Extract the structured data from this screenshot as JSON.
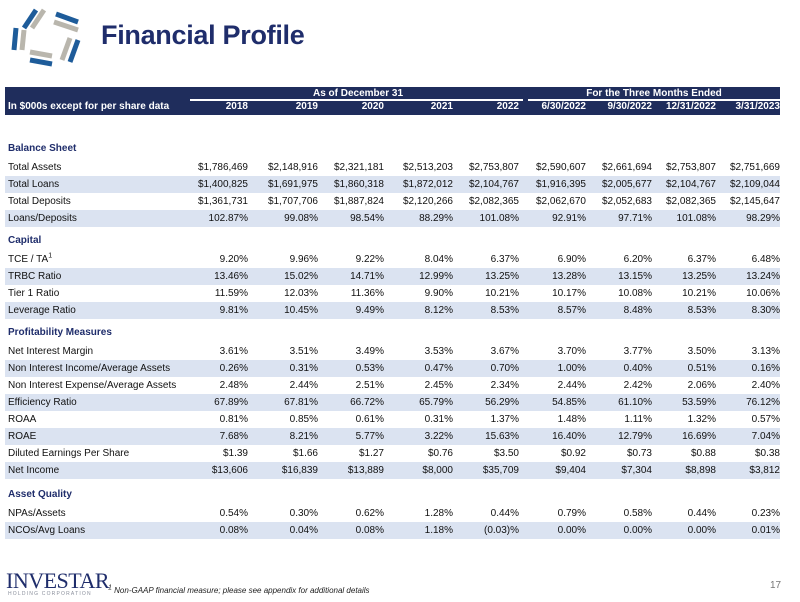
{
  "header": {
    "title": "Financial Profile",
    "brand": "INVESTAR",
    "brand_sub": "HOLDING CORPORATION",
    "brand_color": "#1f2d6b"
  },
  "table": {
    "unit_label": "In $000s except for per share data",
    "group_annual": "As of December 31",
    "group_quarterly": "For the Three Months Ended",
    "columns": [
      "2018",
      "2019",
      "2020",
      "2021",
      "2022",
      "6/30/2022",
      "9/30/2022",
      "12/31/2022",
      "3/31/2023"
    ],
    "header_color": "#1f2d5c",
    "stripe_color": "#dbe3f1",
    "sections": [
      {
        "title": "Balance Sheet",
        "rows": [
          {
            "label": "Total Assets",
            "values": [
              "$1,786,469",
              "$2,148,916",
              "$2,321,181",
              "$2,513,203",
              "$2,753,807",
              "$2,590,607",
              "$2,661,694",
              "$2,753,807",
              "$2,751,669"
            ]
          },
          {
            "label": "Total Loans",
            "values": [
              "$1,400,825",
              "$1,691,975",
              "$1,860,318",
              "$1,872,012",
              "$2,104,767",
              "$1,916,395",
              "$2,005,677",
              "$2,104,767",
              "$2,109,044"
            ]
          },
          {
            "label": "Total Deposits",
            "values": [
              "$1,361,731",
              "$1,707,706",
              "$1,887,824",
              "$2,120,266",
              "$2,082,365",
              "$2,062,670",
              "$2,052,683",
              "$2,082,365",
              "$2,145,647"
            ]
          },
          {
            "label": "Loans/Deposits",
            "values": [
              "102.87%",
              "99.08%",
              "98.54%",
              "88.29%",
              "101.08%",
              "92.91%",
              "97.71%",
              "101.08%",
              "98.29%"
            ]
          }
        ]
      },
      {
        "title": "Capital",
        "rows": [
          {
            "label": "TCE / TA",
            "footnote": "1",
            "values": [
              "9.20%",
              "9.96%",
              "9.22%",
              "8.04%",
              "6.37%",
              "6.90%",
              "6.20%",
              "6.37%",
              "6.48%"
            ]
          },
          {
            "label": "TRBC Ratio",
            "values": [
              "13.46%",
              "15.02%",
              "14.71%",
              "12.99%",
              "13.25%",
              "13.28%",
              "13.15%",
              "13.25%",
              "13.24%"
            ]
          },
          {
            "label": "Tier 1 Ratio",
            "values": [
              "11.59%",
              "12.03%",
              "11.36%",
              "9.90%",
              "10.21%",
              "10.17%",
              "10.08%",
              "10.21%",
              "10.06%"
            ]
          },
          {
            "label": "Leverage Ratio",
            "values": [
              "9.81%",
              "10.45%",
              "9.49%",
              "8.12%",
              "8.53%",
              "8.57%",
              "8.48%",
              "8.53%",
              "8.30%"
            ]
          }
        ]
      },
      {
        "title": "Profitability Measures",
        "rows": [
          {
            "label": "Net Interest Margin",
            "values": [
              "3.61%",
              "3.51%",
              "3.49%",
              "3.53%",
              "3.67%",
              "3.70%",
              "3.77%",
              "3.50%",
              "3.13%"
            ]
          },
          {
            "label": "Non Interest Income/Average Assets",
            "values": [
              "0.26%",
              "0.31%",
              "0.53%",
              "0.47%",
              "0.70%",
              "1.00%",
              "0.40%",
              "0.51%",
              "0.16%"
            ]
          },
          {
            "label": "Non Interest Expense/Average Assets",
            "values": [
              "2.48%",
              "2.44%",
              "2.51%",
              "2.45%",
              "2.34%",
              "2.44%",
              "2.42%",
              "2.06%",
              "2.40%"
            ]
          },
          {
            "label": "Efficiency Ratio",
            "values": [
              "67.89%",
              "67.81%",
              "66.72%",
              "65.79%",
              "56.29%",
              "54.85%",
              "61.10%",
              "53.59%",
              "76.12%"
            ]
          },
          {
            "label": "ROAA",
            "values": [
              "0.81%",
              "0.85%",
              "0.61%",
              "0.31%",
              "1.37%",
              "1.48%",
              "1.11%",
              "1.32%",
              "0.57%"
            ]
          },
          {
            "label": "ROAE",
            "values": [
              "7.68%",
              "8.21%",
              "5.77%",
              "3.22%",
              "15.63%",
              "16.40%",
              "12.79%",
              "16.69%",
              "7.04%"
            ]
          },
          {
            "label": "Diluted Earnings Per Share",
            "values": [
              "$1.39",
              "$1.66",
              "$1.27",
              "$0.76",
              "$3.50",
              "$0.92",
              "$0.73",
              "$0.88",
              "$0.38"
            ]
          },
          {
            "label": "Net Income",
            "values": [
              "$13,606",
              "$16,839",
              "$13,889",
              "$8,000",
              "$35,709",
              "$9,404",
              "$7,304",
              "$8,898",
              "$3,812"
            ]
          }
        ]
      },
      {
        "title": "Asset Quality",
        "rows": [
          {
            "label": "NPAs/Assets",
            "values": [
              "0.54%",
              "0.30%",
              "0.62%",
              "1.28%",
              "0.44%",
              "0.79%",
              "0.58%",
              "0.44%",
              "0.23%"
            ]
          },
          {
            "label": "NCOs/Avg Loans",
            "values": [
              "0.08%",
              "0.04%",
              "0.08%",
              "1.18%",
              "(0.03)%",
              "0.00%",
              "0.00%",
              "0.00%",
              "0.01%"
            ]
          }
        ]
      }
    ]
  },
  "footer": {
    "footnote_mark": "1",
    "footnote": "Non-GAAP financial measure; please see appendix for additional details",
    "page_number": "17"
  }
}
